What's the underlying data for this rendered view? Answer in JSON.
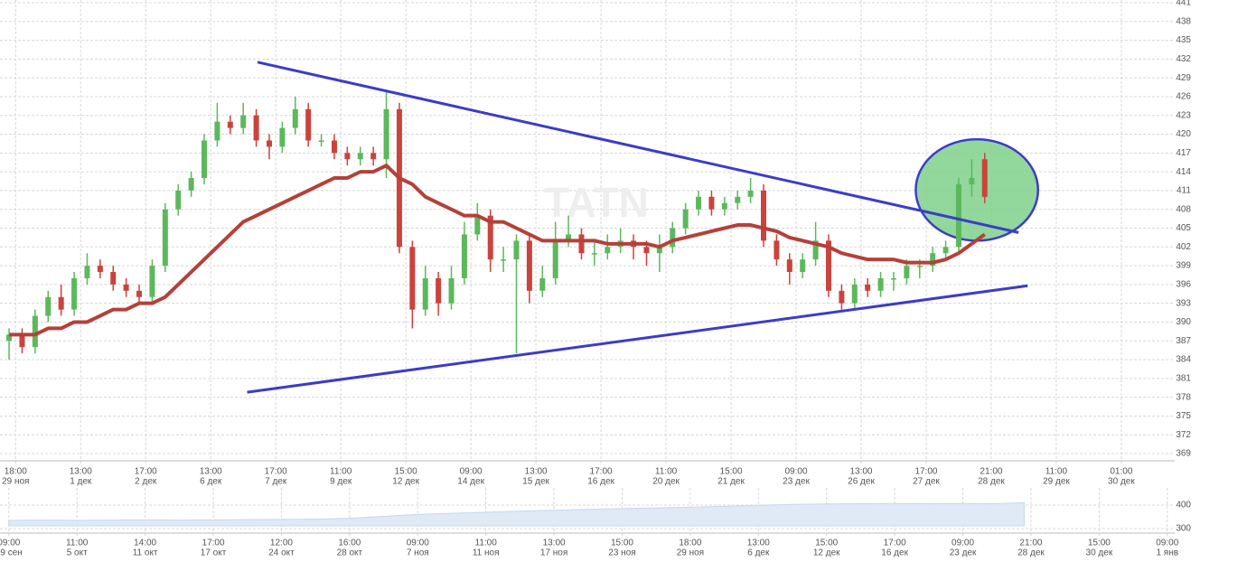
{
  "chart_data": [
    {
      "type": "candlestick",
      "watermark": "TATN",
      "xlim": [
        -0.7,
        90.3
      ],
      "ylim": [
        367.85,
        441.43
      ],
      "yticks": [
        369,
        372,
        375,
        378,
        381,
        384,
        387,
        390,
        393,
        396,
        399,
        402,
        405,
        408,
        411,
        414,
        417,
        420,
        423,
        426,
        429,
        432,
        435,
        438,
        441
      ],
      "xticks": [
        {
          "value": 0.5,
          "label": "18:00",
          "date": "29 ноя"
        },
        {
          "value": 5.5,
          "label": "13:00",
          "date": "1 дек"
        },
        {
          "value": 10.5,
          "label": "17:00",
          "date": "2 дек"
        },
        {
          "value": 15.5,
          "label": "13:00",
          "date": "6 дек"
        },
        {
          "value": 20.5,
          "label": "17:00",
          "date": "7 дек"
        },
        {
          "value": 25.5,
          "label": "11:00",
          "date": "9 дек"
        },
        {
          "value": 30.5,
          "label": "15:00",
          "date": "12 дек"
        },
        {
          "value": 35.5,
          "label": "09:00",
          "date": "14 дек"
        },
        {
          "value": 40.5,
          "label": "13:00",
          "date": "15 дек"
        },
        {
          "value": 45.5,
          "label": "17:00",
          "date": "16 дек"
        },
        {
          "value": 50.5,
          "label": "11:00",
          "date": "20 дек"
        },
        {
          "value": 55.5,
          "label": "15:00",
          "date": "21 дек"
        },
        {
          "value": 60.5,
          "label": "09:00",
          "date": "23 дек"
        },
        {
          "value": 65.5,
          "label": "13:00",
          "date": "26 дек"
        },
        {
          "value": 70.5,
          "label": "17:00",
          "date": "27 дек"
        },
        {
          "value": 75.5,
          "label": "21:00",
          "date": "28 дек"
        },
        {
          "value": 80.5,
          "label": "11:00",
          "date": "29 дек"
        },
        {
          "value": 85.5,
          "label": "01:00",
          "date": "30 дек"
        }
      ],
      "grid": true,
      "up_color": "#5cb85c",
      "down_color": "#c9443c",
      "open": [
        387,
        388,
        386,
        391,
        394,
        392,
        397,
        399,
        398,
        396,
        395,
        394,
        399,
        408,
        411,
        413,
        419,
        422,
        421,
        423,
        419,
        418,
        421,
        424,
        419,
        419,
        417,
        416,
        417,
        416,
        424,
        402,
        392,
        397,
        393,
        397,
        404,
        407,
        400,
        400,
        403,
        395,
        397,
        403,
        404,
        401,
        401,
        402,
        403,
        402,
        401,
        402,
        405,
        408,
        410,
        408,
        409,
        410,
        411,
        403,
        400,
        398,
        400,
        403,
        395,
        393,
        396,
        395,
        397,
        397,
        399,
        399,
        401,
        402,
        412,
        416
      ],
      "high": [
        389,
        389,
        392,
        395,
        396,
        398,
        401,
        400,
        399,
        397,
        396,
        400,
        409,
        412,
        414,
        420,
        425,
        423,
        425,
        424,
        420,
        422,
        426,
        425,
        420,
        420,
        418,
        418,
        418,
        427,
        425,
        403,
        399,
        398,
        399,
        406,
        409,
        408,
        402,
        404,
        404,
        399,
        406,
        407,
        405,
        403,
        404,
        405,
        404,
        403,
        404,
        406,
        409,
        411,
        411,
        410,
        411,
        413,
        412,
        404,
        401,
        401,
        406,
        404,
        396,
        397,
        397,
        398,
        398,
        400,
        400,
        402,
        403,
        413,
        416,
        417
      ],
      "low": [
        384,
        385,
        385,
        390,
        391,
        391,
        396,
        397,
        395,
        394,
        393,
        393,
        398,
        407,
        410,
        412,
        418,
        420,
        420,
        418,
        416,
        417,
        420,
        418,
        418,
        416,
        415,
        415,
        415,
        413,
        401,
        389,
        391,
        391,
        392,
        396,
        403,
        398,
        398,
        385,
        393,
        394,
        396,
        402,
        400,
        399,
        400,
        401,
        400,
        399,
        398,
        401,
        404,
        407,
        407,
        407,
        408,
        409,
        402,
        399,
        396,
        397,
        399,
        394,
        392,
        392,
        394,
        394,
        395,
        396,
        397,
        398,
        400,
        401,
        410,
        409
      ],
      "close": [
        388,
        386,
        391,
        394,
        392,
        397,
        399,
        398,
        396,
        395,
        394,
        399,
        408,
        411,
        413,
        419,
        422,
        421,
        423,
        419,
        418,
        421,
        424,
        419,
        419,
        417,
        416,
        417,
        416,
        424,
        402,
        392,
        397,
        393,
        397,
        404,
        407,
        400,
        400,
        403,
        395,
        397,
        403,
        404,
        401,
        401,
        402,
        403,
        402,
        401,
        402,
        405,
        408,
        410,
        408,
        409,
        410,
        411,
        403,
        400,
        398,
        400,
        403,
        395,
        393,
        396,
        395,
        397,
        397,
        399,
        399,
        401,
        402,
        412,
        413,
        410
      ],
      "moving_average": {
        "color": "#b5403a",
        "values": [
          388,
          388,
          388,
          389,
          389,
          390,
          390,
          391,
          392,
          392,
          393,
          393,
          394,
          396,
          398,
          400,
          402,
          404,
          406,
          407,
          408,
          409,
          410,
          411,
          412,
          413,
          413,
          414,
          414,
          415,
          413,
          412,
          410,
          409,
          408,
          407,
          407,
          406,
          406,
          405,
          404,
          403,
          403,
          403,
          403,
          403,
          402.5,
          402.5,
          402.5,
          402.5,
          402,
          403,
          403.5,
          404,
          404.5,
          405,
          405.5,
          405.5,
          405,
          404.5,
          403.5,
          403,
          402.5,
          402,
          401,
          400.5,
          400,
          400,
          400,
          399.5,
          399.5,
          399.5,
          400,
          401,
          402.5,
          404
        ]
      },
      "trend_lines": [
        {
          "color": "#3c3cc8",
          "x": [
            19.1,
            77.6
          ],
          "y": [
            431.5,
            404.3
          ]
        },
        {
          "color": "#3c3cc8",
          "x": [
            18.3,
            78.3
          ],
          "y": [
            378.8,
            395.8
          ]
        }
      ],
      "ellipse": {
        "color": "#3c3cc8",
        "fill": "#7fd08a",
        "x": 74.4,
        "y": 411.1,
        "rx": 4.7,
        "ry": 8.1
      }
    },
    {
      "type": "area",
      "color": "#dfeaf6",
      "line_color": "#c5d7ec",
      "xlim": [
        -0.13,
        18.17
      ],
      "ylim": [
        281,
        473
      ],
      "yticks": [
        300,
        400
      ],
      "xticks": [
        {
          "value": 0,
          "label": "09:00",
          "date": "29 сен"
        },
        {
          "value": 1,
          "label": "11:00",
          "date": "5 окт"
        },
        {
          "value": 2,
          "label": "14:00",
          "date": "11 окт"
        },
        {
          "value": 3,
          "label": "17:00",
          "date": "17 окт"
        },
        {
          "value": 4,
          "label": "12:00",
          "date": "24 окт"
        },
        {
          "value": 5,
          "label": "16:00",
          "date": "28 окт"
        },
        {
          "value": 6,
          "label": "09:00",
          "date": "7 ноя"
        },
        {
          "value": 7,
          "label": "11:00",
          "date": "11 ноя"
        },
        {
          "value": 8,
          "label": "13:00",
          "date": "17 ноя"
        },
        {
          "value": 9,
          "label": "15:00",
          "date": "23 ноя"
        },
        {
          "value": 10,
          "label": "18:00",
          "date": "29 ноя"
        },
        {
          "value": 11,
          "label": "13:00",
          "date": "6 дек"
        },
        {
          "value": 12,
          "label": "15:00",
          "date": "12 дек"
        },
        {
          "value": 13,
          "label": "17:00",
          "date": "16 дек"
        },
        {
          "value": 14,
          "label": "09:00",
          "date": "23 дек"
        },
        {
          "value": 15,
          "label": "21:00",
          "date": "28 дек"
        },
        {
          "value": 16,
          "label": "15:00",
          "date": "30 дек"
        },
        {
          "value": 17,
          "label": "09:00",
          "date": "1 янв"
        }
      ],
      "x": [
        0,
        0.5,
        1,
        1.5,
        2,
        2.5,
        3,
        3.5,
        4,
        4.5,
        5,
        5.5,
        6,
        6.5,
        7,
        7.5,
        8,
        8.5,
        9,
        9.5,
        10,
        10.5,
        11,
        11.5,
        12,
        12.5,
        13,
        13.5,
        14,
        14.5,
        14.9
      ],
      "values": [
        335,
        336,
        335,
        336,
        337,
        336,
        337,
        338,
        339,
        340,
        344,
        352,
        360,
        365,
        370,
        374,
        378,
        382,
        385,
        388,
        391,
        395,
        399,
        403,
        405,
        406,
        407,
        406,
        407,
        406,
        410
      ]
    }
  ]
}
